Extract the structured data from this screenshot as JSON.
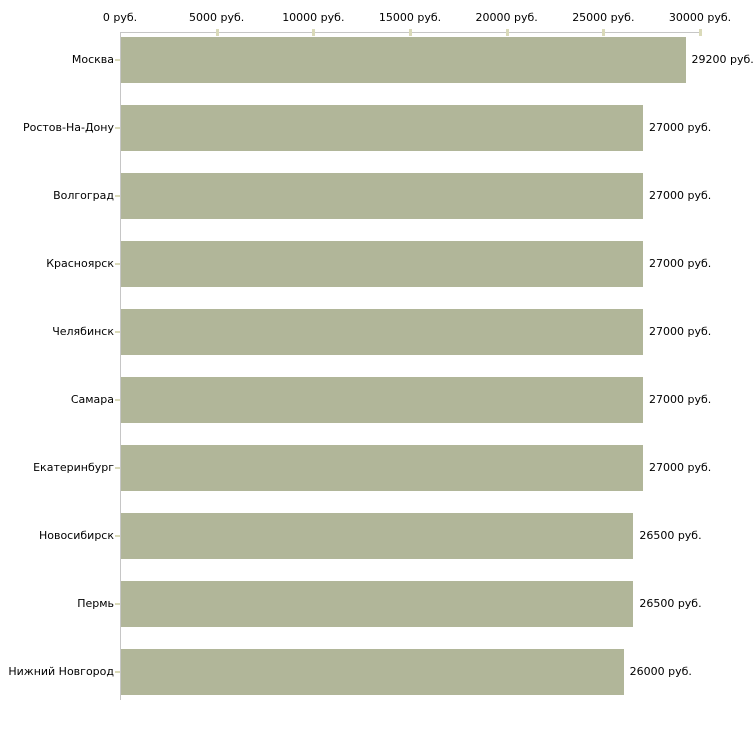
{
  "chart_data": {
    "type": "bar",
    "orientation": "horizontal",
    "title": "",
    "xlabel": "",
    "ylabel": "",
    "unit": "руб.",
    "grid": false,
    "legend": null,
    "categories": [
      "Москва",
      "Ростов-На-Дону",
      "Волгоград",
      "Красноярск",
      "Челябинск",
      "Самара",
      "Екатеринбург",
      "Новосибирск",
      "Пермь",
      "Нижний Новгород"
    ],
    "values": [
      29200,
      27000,
      27000,
      27000,
      27000,
      27000,
      27000,
      26500,
      26500,
      26000
    ],
    "value_labels": [
      "29200 руб.",
      "27000 руб.",
      "27000 руб.",
      "27000 руб.",
      "27000 руб.",
      "27000 руб.",
      "27000 руб.",
      "26500 руб.",
      "26500 руб.",
      "26000 руб."
    ],
    "x_tick_values": [
      0,
      5000,
      10000,
      15000,
      20000,
      25000,
      30000
    ],
    "x_tick_labels": [
      "0 руб.",
      "5000 руб.",
      "10000 руб.",
      "15000 руб.",
      "20000 руб.",
      "25000 руб.",
      "30000 руб."
    ],
    "xlim": [
      0,
      30000
    ],
    "colors": {
      "bar": "#b1b699",
      "axis_line": "#c6c6c6",
      "tick_mark": "#dadab9",
      "text": "#000000",
      "background": "#ffffff"
    }
  }
}
